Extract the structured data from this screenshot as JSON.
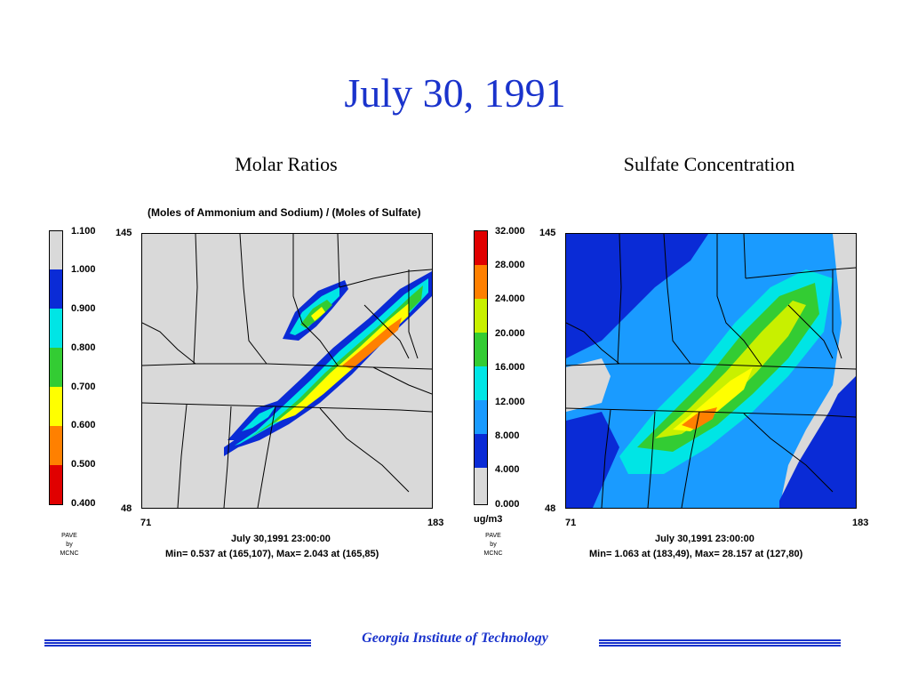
{
  "slide": {
    "title": "July 30, 1991",
    "footer": "Georgia Institute of Technology"
  },
  "colors": {
    "title_blue": "#1a33cc",
    "background_gray": "#d9d9d9",
    "scale": [
      "#e00000",
      "#ff8000",
      "#ffff00",
      "#33cc33",
      "#00e5e5",
      "#0a2bd6"
    ]
  },
  "panels": [
    {
      "title": "Molar Ratios",
      "subtitle": "(Moles of Ammonium and Sodium) / (Moles of Sulfate)",
      "legend_labels": [
        "1.100",
        "1.000",
        "0.900",
        "0.800",
        "0.700",
        "0.600",
        "0.500",
        "0.400"
      ],
      "legend_unit": "",
      "y_top": "145",
      "y_bottom": "48",
      "x_left": "71",
      "x_right": "183",
      "credit": [
        "PAVE",
        "by",
        "MCNC"
      ],
      "timestamp": "July 30,1991 23:00:00",
      "minmax": "Min=   0.537 at (165,107), Max=   2.043 at (165,85)"
    },
    {
      "title": "Sulfate Concentration",
      "subtitle": "",
      "legend_labels": [
        "32.000",
        "28.000",
        "24.000",
        "20.000",
        "16.000",
        "12.000",
        "8.000",
        "4.000",
        "0.000"
      ],
      "legend_unit": "ug/m3",
      "y_top": "145",
      "y_bottom": "48",
      "x_left": "71",
      "x_right": "183",
      "credit": [
        "PAVE",
        "by",
        "MCNC"
      ],
      "timestamp": "July 30,1991 23:00:00",
      "minmax": "Min=   1.063 at (183,49), Max=   28.157 at (127,80)"
    }
  ]
}
